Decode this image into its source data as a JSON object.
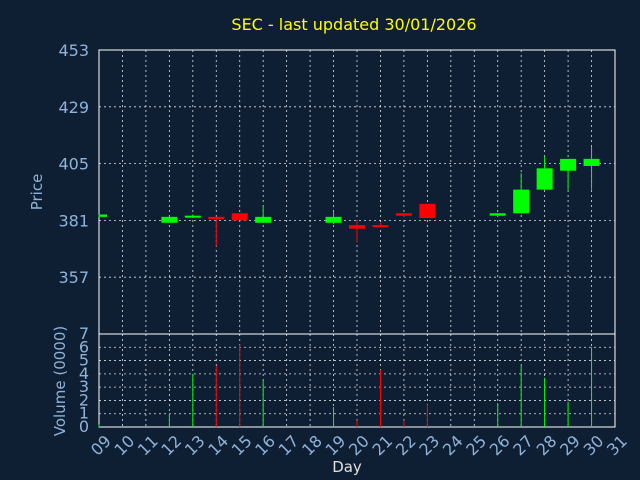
{
  "chart_data": {
    "type": "candlestick",
    "title": "SEC - last updated 30/01/2026",
    "xlabel": "Day",
    "price_panel": {
      "ylabel": "Price",
      "ylim": [
        333,
        453
      ],
      "yticks": [
        357,
        381,
        405,
        429,
        453
      ],
      "grid": true
    },
    "volume_panel": {
      "ylabel": "Volume (0000)",
      "ylim": [
        0,
        7
      ],
      "yticks": [
        0,
        1,
        2,
        3,
        4,
        5,
        6,
        7
      ],
      "grid": true
    },
    "x_ticks": [
      "09",
      "10",
      "11",
      "12",
      "13",
      "14",
      "15",
      "16",
      "17",
      "18",
      "19",
      "20",
      "21",
      "22",
      "23",
      "24",
      "25",
      "26",
      "27",
      "28",
      "29",
      "30",
      "31"
    ],
    "candles": [
      {
        "day": "09",
        "open": 382.5,
        "high": 383.5,
        "low": 382.5,
        "close": 383.5,
        "volume": 0.2
      },
      {
        "day": "12",
        "open": 380,
        "high": 382.5,
        "low": 380,
        "close": 382.5,
        "volume": 1.0
      },
      {
        "day": "13",
        "open": 382.5,
        "high": 383.5,
        "low": 382,
        "close": 383,
        "volume": 4.0
      },
      {
        "day": "14",
        "open": 382.5,
        "high": 382.5,
        "low": 370,
        "close": 381.5,
        "volume": 4.6
      },
      {
        "day": "15",
        "open": 384,
        "high": 384,
        "low": 381,
        "close": 381,
        "volume": 6.2
      },
      {
        "day": "16",
        "open": 380,
        "high": 387,
        "low": 380,
        "close": 382.5,
        "volume": 3.5
      },
      {
        "day": "19",
        "open": 380,
        "high": 384.5,
        "low": 379.5,
        "close": 382.5,
        "volume": 1.5
      },
      {
        "day": "20",
        "open": 379,
        "high": 381,
        "low": 372,
        "close": 377.5,
        "volume": 0.5
      },
      {
        "day": "21",
        "open": 379,
        "high": 380,
        "low": 378,
        "close": 378.5,
        "volume": 4.3
      },
      {
        "day": "22",
        "open": 384,
        "high": 384,
        "low": 382.5,
        "close": 383,
        "volume": 0.5
      },
      {
        "day": "23",
        "open": 388,
        "high": 388,
        "low": 382,
        "close": 382,
        "volume": 1.7
      },
      {
        "day": "26",
        "open": 383,
        "high": 384,
        "low": 382.5,
        "close": 384,
        "volume": 1.8
      },
      {
        "day": "27",
        "open": 384,
        "high": 401,
        "low": 384,
        "close": 394,
        "volume": 4.6
      },
      {
        "day": "28",
        "open": 394,
        "high": 408,
        "low": 394,
        "close": 403,
        "volume": 3.7
      },
      {
        "day": "29",
        "open": 402,
        "high": 407,
        "low": 394,
        "close": 407,
        "volume": 1.9
      },
      {
        "day": "30",
        "open": 404,
        "high": 412,
        "low": 394,
        "close": 407,
        "volume": 6.0
      }
    ],
    "colors": {
      "background": "#0f1f33",
      "up": "#00ff00",
      "down": "#ff0000",
      "title": "#ffff00",
      "ticks": "#8fb3d9",
      "grid": "#ffffff"
    }
  }
}
